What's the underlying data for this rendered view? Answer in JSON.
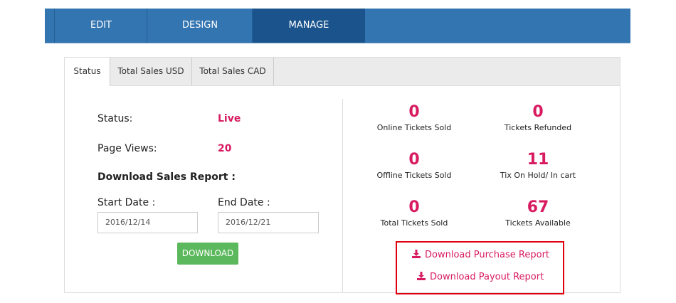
{
  "nav": {
    "tabs": [
      {
        "label": "EDIT"
      },
      {
        "label": "DESIGN"
      },
      {
        "label": "MANAGE",
        "active": true
      }
    ]
  },
  "tabs": [
    {
      "label": "Status",
      "active": true
    },
    {
      "label": "Total Sales USD"
    },
    {
      "label": "Total Sales CAD"
    }
  ],
  "status": {
    "status_label": "Status:",
    "status_value": "Live",
    "views_label": "Page Views:",
    "views_value": "20",
    "report_heading": "Download Sales Report :",
    "start_label": "Start Date :",
    "start_value": "2016/12/14",
    "end_label": "End Date :",
    "end_value": "2016/12/21",
    "download_label": "DOWNLOAD"
  },
  "stats": [
    {
      "value": "0",
      "label": "Online Tickets Sold"
    },
    {
      "value": "0",
      "label": "Tickets Refunded"
    },
    {
      "value": "0",
      "label": "Offline Tickets Sold"
    },
    {
      "value": "11",
      "label": "Tix On Hold/ In cart"
    },
    {
      "value": "0",
      "label": "Total Tickets Sold"
    },
    {
      "value": "67",
      "label": "Tickets Available"
    }
  ],
  "links": {
    "purchase": "Download Purchase Report",
    "payout": "Download Payout Report",
    "icon": "download-icon"
  },
  "colors": {
    "nav": "#3375b0",
    "nav_active": "#1b548c",
    "accent": "#d81b60",
    "button": "#5cb85c",
    "highlight": "#e00010"
  }
}
